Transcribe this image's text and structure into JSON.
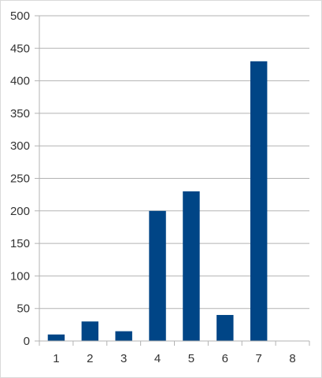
{
  "chart_data": {
    "type": "bar",
    "categories": [
      "1",
      "2",
      "3",
      "4",
      "5",
      "6",
      "7",
      "8"
    ],
    "values": [
      10,
      30,
      15,
      200,
      230,
      40,
      430,
      0
    ],
    "ylim": [
      0,
      500
    ],
    "yticks": [
      0,
      50,
      100,
      150,
      200,
      250,
      300,
      350,
      400,
      450,
      500
    ],
    "grid": "horizontal",
    "legend": "none",
    "bar_color": "#004586",
    "grid_color": "#b3b3b3",
    "axis_color": "#b3b3b3",
    "title": "",
    "xlabel": "",
    "ylabel": ""
  }
}
